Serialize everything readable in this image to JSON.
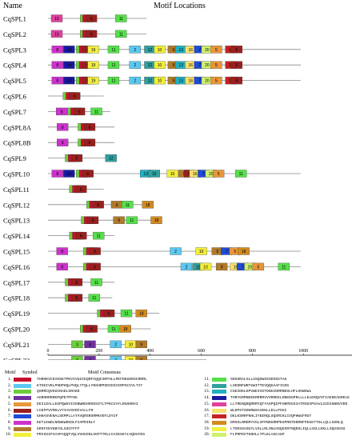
{
  "headers": {
    "name": "Name",
    "title": "Motif Locations"
  },
  "axis": {
    "min": 0,
    "max": 1200,
    "ticks": [
      0,
      200,
      400,
      600,
      800,
      1000
    ]
  },
  "colors": {
    "1": "#c8102e",
    "2": "#5bc8f0",
    "3": "#6ccf3a",
    "4": "#7030a0",
    "5": "#e8963a",
    "6": "#9a1f1f",
    "7": "#1f4bd6",
    "8": "#cc33cc",
    "9": "#b07a2a",
    "10": "#f2ef3a",
    "11": "#55e04a",
    "12": "#30a0a0",
    "13": "#20b0c0",
    "14": "#1a1aa0",
    "15": "#e040a0",
    "16": "#f5e06a",
    "17": "#c82020",
    "18": "#d28a20",
    "19": "#f0f040",
    "20": "#d0f070"
  },
  "genes": [
    {
      "name": "CqSPL1",
      "length": 460,
      "motifs": [
        [
          15,
          15
        ],
        [
          3,
          150
        ],
        [
          1,
          162
        ],
        [
          6,
          176
        ],
        [
          11,
          315
        ]
      ]
    },
    {
      "name": "CqSPL2",
      "length": 460,
      "motifs": [
        [
          15,
          15
        ],
        [
          3,
          150
        ],
        [
          1,
          162
        ],
        [
          6,
          176
        ],
        [
          11,
          315
        ]
      ]
    },
    {
      "name": "CqSPL3",
      "length": 1180,
      "motifs": [
        [
          8,
          18
        ],
        [
          14,
          72
        ],
        [
          3,
          132
        ],
        [
          1,
          146
        ],
        [
          6,
          160
        ],
        [
          19,
          185
        ],
        [
          11,
          280
        ],
        [
          2,
          380
        ],
        [
          12,
          450
        ],
        [
          10,
          495
        ],
        [
          9,
          560
        ],
        [
          13,
          595
        ],
        [
          16,
          640
        ],
        [
          7,
          683
        ],
        [
          20,
          717
        ],
        [
          5,
          760
        ],
        [
          17,
          828
        ],
        [
          6,
          855
        ]
      ]
    },
    {
      "name": "CqSPL4",
      "length": 1180,
      "motifs": [
        [
          8,
          18
        ],
        [
          14,
          72
        ],
        [
          3,
          132
        ],
        [
          1,
          146
        ],
        [
          6,
          160
        ],
        [
          19,
          185
        ],
        [
          11,
          280
        ],
        [
          2,
          380
        ],
        [
          12,
          450
        ],
        [
          10,
          495
        ],
        [
          9,
          560
        ],
        [
          13,
          595
        ],
        [
          16,
          640
        ],
        [
          7,
          683
        ],
        [
          20,
          717
        ],
        [
          5,
          760
        ],
        [
          17,
          828
        ],
        [
          6,
          855
        ]
      ]
    },
    {
      "name": "CqSPL5",
      "length": 1180,
      "motifs": [
        [
          8,
          18
        ],
        [
          14,
          72
        ],
        [
          3,
          132
        ],
        [
          1,
          146
        ],
        [
          6,
          160
        ],
        [
          19,
          185
        ],
        [
          11,
          280
        ],
        [
          2,
          380
        ],
        [
          12,
          450
        ],
        [
          10,
          495
        ],
        [
          9,
          560
        ],
        [
          13,
          595
        ],
        [
          16,
          640
        ],
        [
          7,
          683
        ],
        [
          20,
          717
        ],
        [
          5,
          760
        ],
        [
          17,
          828
        ],
        [
          6,
          855
        ]
      ]
    },
    {
      "name": "CqSPL6",
      "length": 260,
      "motifs": [
        [
          3,
          70
        ],
        [
          1,
          84
        ],
        [
          6,
          98
        ]
      ]
    },
    {
      "name": "CqSPL7",
      "length": 290,
      "motifs": [
        [
          8,
          38
        ],
        [
          3,
          92
        ],
        [
          1,
          106
        ],
        [
          6,
          120
        ],
        [
          11,
          200
        ]
      ]
    },
    {
      "name": "CqSPL8A",
      "length": 310,
      "motifs": [
        [
          8,
          42
        ],
        [
          3,
          140
        ],
        [
          1,
          154
        ],
        [
          6,
          168
        ]
      ]
    },
    {
      "name": "CqSPL8B",
      "length": 310,
      "motifs": [
        [
          8,
          42
        ],
        [
          3,
          140
        ],
        [
          1,
          154
        ],
        [
          6,
          168
        ]
      ]
    },
    {
      "name": "CqSPL9",
      "length": 310,
      "motifs": [
        [
          3,
          80
        ],
        [
          1,
          94
        ],
        [
          6,
          108
        ],
        [
          12,
          268
        ]
      ]
    },
    {
      "name": "CqSPL10",
      "length": 1180,
      "motifs": [
        [
          8,
          18
        ],
        [
          14,
          72
        ],
        [
          3,
          132
        ],
        [
          1,
          146
        ],
        [
          6,
          160
        ],
        [
          13,
          430
        ],
        [
          12,
          470
        ],
        [
          10,
          555
        ],
        [
          9,
          610
        ],
        [
          6,
          635
        ],
        [
          16,
          660
        ],
        [
          7,
          700
        ],
        [
          20,
          735
        ],
        [
          5,
          770
        ],
        [
          11,
          875
        ]
      ]
    },
    {
      "name": "CqSPL11",
      "length": 260,
      "motifs": [
        [
          3,
          100
        ],
        [
          1,
          114
        ],
        [
          6,
          128
        ]
      ]
    },
    {
      "name": "CqSPL12",
      "length": 480,
      "motifs": [
        [
          3,
          180
        ],
        [
          1,
          194
        ],
        [
          6,
          208
        ],
        [
          9,
          295
        ],
        [
          11,
          345
        ],
        [
          18,
          440
        ]
      ]
    },
    {
      "name": "CqSPL13",
      "length": 520,
      "motifs": [
        [
          3,
          155
        ],
        [
          1,
          169
        ],
        [
          6,
          183
        ],
        [
          9,
          305
        ],
        [
          11,
          365
        ],
        [
          18,
          480
        ]
      ]
    },
    {
      "name": "CqSPL14",
      "length": 310,
      "motifs": [
        [
          3,
          100
        ],
        [
          1,
          114
        ],
        [
          6,
          128
        ],
        [
          11,
          210
        ]
      ]
    },
    {
      "name": "CqSPL15",
      "length": 1180,
      "motifs": [
        [
          8,
          40
        ],
        [
          3,
          165
        ],
        [
          1,
          179
        ],
        [
          6,
          193
        ],
        [
          2,
          570
        ],
        [
          10,
          690
        ],
        [
          9,
          765
        ],
        [
          7,
          808
        ],
        [
          5,
          847
        ],
        [
          18,
          888
        ]
      ]
    },
    {
      "name": "CqSPL16",
      "length": 1180,
      "motifs": [
        [
          8,
          40
        ],
        [
          3,
          165
        ],
        [
          1,
          179
        ],
        [
          6,
          193
        ],
        [
          2,
          620
        ],
        [
          12,
          675
        ],
        [
          10,
          710
        ],
        [
          9,
          785
        ],
        [
          16,
          850
        ],
        [
          7,
          883
        ],
        [
          20,
          917
        ],
        [
          5,
          956
        ],
        [
          11,
          1075
        ]
      ]
    },
    {
      "name": "CqSPL17",
      "length": 310,
      "motifs": [
        [
          3,
          80
        ],
        [
          1,
          94
        ],
        [
          6,
          108
        ],
        [
          11,
          200
        ]
      ]
    },
    {
      "name": "CqSPL18",
      "length": 300,
      "motifs": [
        [
          3,
          80
        ],
        [
          1,
          94
        ],
        [
          6,
          108
        ],
        [
          11,
          190
        ]
      ]
    },
    {
      "name": "CqSPL19",
      "length": 520,
      "motifs": [
        [
          3,
          230
        ],
        [
          1,
          244
        ],
        [
          6,
          258
        ],
        [
          11,
          340
        ],
        [
          18,
          410
        ]
      ]
    },
    {
      "name": "CqSPL20",
      "length": 480,
      "motifs": [
        [
          3,
          150
        ],
        [
          1,
          164
        ],
        [
          6,
          178
        ],
        [
          11,
          280
        ],
        [
          18,
          335
        ]
      ]
    },
    {
      "name": "CqSPL21",
      "length": 450,
      "motifs": [
        [
          3,
          110
        ],
        [
          4,
          170
        ],
        [
          2,
          290
        ],
        [
          10,
          360
        ],
        [
          9,
          410
        ]
      ]
    },
    {
      "name": "CqSPL22",
      "length": 740,
      "motifs": [
        [
          3,
          110
        ],
        [
          4,
          170
        ],
        [
          2,
          290
        ],
        [
          10,
          360
        ],
        [
          9,
          410
        ]
      ]
    }
  ],
  "legend": {
    "head_motif": "Motif",
    "head_symbol": "Symbol",
    "head_consensus": "Motif Consensus",
    "items": [
      {
        "num": "1.",
        "seq": "THRHKVCEVHSKTPKVIVGGIEQRFCQQCSRFHLLPEFDEGKRSCRRRL"
      },
      {
        "num": "2.",
        "seq": "KTGEIVKLPHDPHQLPHQLYTQLLYNSHRPSDIEGVIRPGCIVLTIY"
      },
      {
        "num": "3.",
        "seq": "QSRRCQVEGCNADLSRAKD"
      },
      {
        "num": "4.",
        "seq": "AGRHRRRRKPQPETPFNG"
      },
      {
        "num": "5.",
        "seq": "EEILDALLEGPQWGVISGNWNEHRSDSSTLTPKCVAYLRGHHNVI"
      },
      {
        "num": "6.",
        "seq": "LCKFPVVMSLVYIAVSVDCVALLFR"
      },
      {
        "num": "7.",
        "seq": "GHHASVENALSEMPLLATAVQRSRSRMKVEFLDYIF"
      },
      {
        "num": "8.",
        "seq": "KETLEWDLNDWKWDGDLFIAPRINLT"
      },
      {
        "num": "9.",
        "seq": "GRSFIEVEBYSLSSCFFFF"
      },
      {
        "num": "10.",
        "seq": "PRISSIPIAVPAQQTVQLVVHGSNLSGPTTRLLCAIEGKYLVQDVCRS"
      },
      {
        "num": "11.",
        "seq": "SDSSRALSLLSSQSWSSSDSSGTAS"
      },
      {
        "num": "12.",
        "seq": "LSEDNFWRTGWITTEVQQGAAFICDG"
      },
      {
        "num": "13.",
        "seq": "CSEIDKLEPVWEIVGTDNGIDRRNDSLHFLHHWGWL"
      },
      {
        "num": "14.",
        "seq": "THRYGRRNEEKRRRRVVVRREELDNEDGPRLLLLELERQVVFIAEDEAGRKLE"
      },
      {
        "num": "15.",
        "seq": "LLTRENQRQRRRYQTYAGPQIPFHNPDGSIATRSGVPGAVLGIDIHNNVVDD"
      },
      {
        "num": "16.",
        "seq": "WLDPSTSDKRWSAVKKLLDLLPSGI"
      },
      {
        "num": "17.",
        "seq": "DELKSRRFNHLIYEERQLSQSRCKLCVQPHWGFRGT"
      },
      {
        "num": "18.",
        "seq": "DMIKLNMGMYVGLSFPNDGRRPEGPRNTDDRNFPEGGTTDLLQLLSSNLQ"
      },
      {
        "num": "19.",
        "seq": "LTOESSASGYLVSLLRLSNLHSQGSRTNQDSLIQLLSSLLKKLLSQVSGSS"
      },
      {
        "num": "20.",
        "seq": "FLPRPDVTGNHLLTPLKLASCAGP"
      }
    ]
  }
}
